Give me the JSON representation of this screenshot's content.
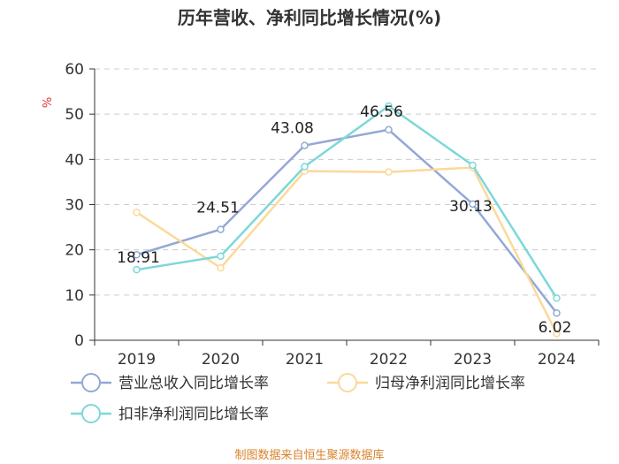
{
  "chart_data": {
    "type": "line",
    "title": "历年营收、净利同比增长情况(%)",
    "ylabel": "%",
    "ylim": [
      0,
      60
    ],
    "yticks": [
      0,
      10,
      20,
      30,
      40,
      50,
      60
    ],
    "categories": [
      "2019",
      "2020",
      "2021",
      "2022",
      "2023",
      "2024"
    ],
    "grid": true,
    "legend_position": "bottom",
    "series": [
      {
        "name": "营业总收入同比增长率",
        "color": "#93a8d6",
        "values": [
          18.91,
          24.51,
          43.08,
          46.56,
          30.13,
          6.02
        ],
        "labels": [
          "18.91",
          "24.51",
          "43.08",
          "46.56",
          "30.13",
          "6.02"
        ]
      },
      {
        "name": "归母净利润同比增长率",
        "color": "#fbd99a",
        "values": [
          28.3,
          16.0,
          37.4,
          37.2,
          38.2,
          1.5
        ]
      },
      {
        "name": "扣非净利润同比增长率",
        "color": "#7dd8d8",
        "values": [
          15.6,
          18.6,
          38.4,
          51.8,
          38.7,
          9.3
        ]
      }
    ],
    "source": "制图数据来自恒生聚源数据库"
  }
}
